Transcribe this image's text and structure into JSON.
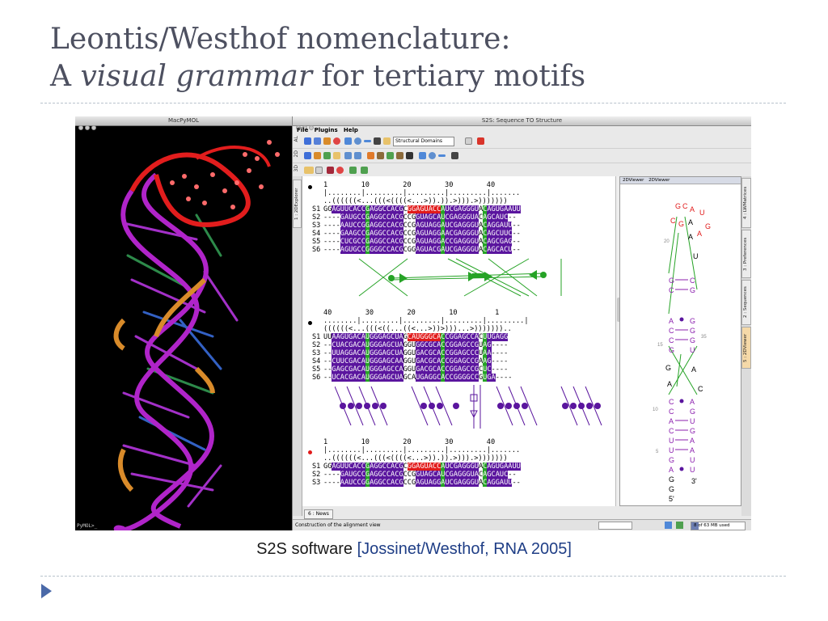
{
  "slide": {
    "title_line1": "Leontis/Westhof nomenclature:",
    "title_line2_a": "A ",
    "title_line2_italic": "visual grammar",
    "title_line2_b": " for tertiary motifs",
    "caption_main": "S2S software ",
    "caption_ref": "[Jossinet/Westhof, RNA 2005]"
  },
  "pymol": {
    "window_title": "MacPyMOL",
    "prompt": "PyMOL>_"
  },
  "s2s": {
    "window_title": "S2S: Sequence TO Structure",
    "menu": [
      "File",
      "Plugins",
      "Help"
    ],
    "toolbar_labels": [
      "AL",
      "2D",
      "3D"
    ],
    "domains_select": "Structural Domains",
    "left_tab": "1 : 2DExplorer",
    "right_tabs": [
      "4 : LWMatrices",
      "3 : Preferences",
      "2 : Sequences",
      "5 : 2DViewer"
    ],
    "viewer_tabs": [
      "2DViewer",
      "2DViewer"
    ],
    "bottom_tab": "6 : News",
    "status_message": "Construction of the alignment view",
    "memory": "8 of 63 MB used",
    "memory_fraction": 0.13,
    "block1": {
      "ruler_numbers": "1        10        20        30        40",
      "ruler_ticks": "|........|.........|.........|.........|.......",
      "bracket": "..((((((<...(((<((((<...>)).)).>))).>)))))))",
      "rows": [
        {
          "label": "S1",
          "seq": "GGAGUUCACCGAGGCCACGCGGAGUACCAUCGAGGGUACAGUGAAUU"
        },
        {
          "label": "S2",
          "seq": "----GAUGCCGAGGCCACGCCGGUAGCAUCGAGGGUACAGCAUC--"
        },
        {
          "label": "S3",
          "seq": "----AAUCCGGAGGCCACGCCGAGUAGGAUCGAGGGUACAGGAUU--"
        },
        {
          "label": "S4",
          "seq": "----GAAGCCGAGGCCACGCCGAGUAGGAACGAGGGUACAGCUUC--"
        },
        {
          "label": "S5",
          "seq": "----CUCGCCGAGGCCACGCCGAGUAGGACCGAGGGUACAGCGAG--"
        },
        {
          "label": "S6",
          "seq": "----AGUGCCGGGGCCACGCGGAGUACGAUCGAGGGUACAGCACU--"
        }
      ]
    },
    "block2": {
      "ruler_numbers": "40        30        20        10         1",
      "ruler_ticks": "........|.........|.........|.........|.........|",
      "bracket": "((((((<...(((<((...((<...>))>)))...>)))))))..",
      "rows": [
        {
          "label": "S1",
          "seq": "UUAAGUGACAUGGGAGCUAGCAUGGGCACCGGAGCCACUUGAGG"
        },
        {
          "label": "S2",
          "seq": "--CUACGACAUGGGAGCUAGGUGGCGCACCGGAGCCGUAG----"
        },
        {
          "label": "S3",
          "seq": "--UUAGGACAUGGGAGCUAGGUGACGCACCGGAGCCCUAA----"
        },
        {
          "label": "S4",
          "seq": "--CUUCGACAUGGGAGCAAGGUGACGCACCGGAGCCGAAG----"
        },
        {
          "label": "S5",
          "seq": "--GAGCGACAUGGGAGCCAGGUGACGCACCGGAGCCGCUC----"
        },
        {
          "label": "S6",
          "seq": "--UCACGACAUGGGAGCUAGCAUGAGGCACCGGGGCCGUGA----"
        }
      ]
    },
    "block3": {
      "ruler_numbers": "1        10        20        30        40",
      "ruler_ticks": "|........|.........|.........|.........|.......",
      "bracket": "..((((((<...(((<((((<...>)).)).>))).>)))))))",
      "rows": [
        {
          "label": "S1",
          "seq": "GGAGUUCACCGAGGCCACGCGGAGUACCAUCGAGGGUACAGUGAAUU"
        },
        {
          "label": "S2",
          "seq": "----GAUGCCGAGGCCACGCCGGUAGCAUCGAGGGUACAGCAUC--"
        },
        {
          "label": "S3",
          "seq": "----AAUCCGGAGGCCACGCCGAGUAGGAUCGAGGGUACAGGAUU--"
        }
      ]
    },
    "viewer_labels": {
      "n20": "20",
      "n15": "15",
      "n35": "35",
      "n10": "10",
      "n5": "5",
      "five_prime": "5'",
      "three_prime": "3'"
    }
  },
  "colors": {
    "purple": "#5a159e",
    "green": "#26a326",
    "red": "#e11a1a",
    "title": "#4d5060",
    "caption_ref": "#1f3e86"
  }
}
